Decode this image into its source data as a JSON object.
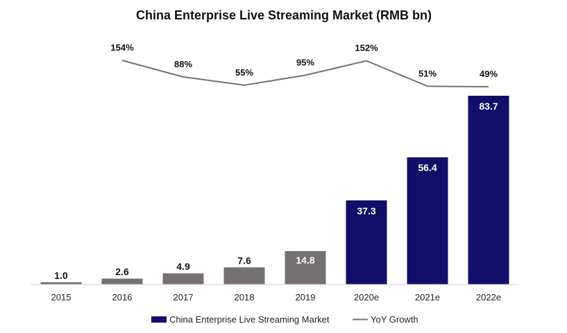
{
  "chart_data": {
    "type": "bar",
    "title": "China Enterprise Live Streaming Market (RMB bn)",
    "categories": [
      "2015",
      "2016",
      "2017",
      "2018",
      "2019",
      "2020e",
      "2021e",
      "2022e"
    ],
    "series": [
      {
        "name": "China Enterprise Live Streaming Market",
        "type": "bar",
        "values": [
          1.0,
          2.6,
          4.9,
          7.6,
          14.8,
          37.3,
          56.4,
          83.7
        ],
        "value_labels": [
          "1.0",
          "2.6",
          "4.9",
          "7.6",
          "14.8",
          "37.3",
          "56.4",
          "83.7"
        ],
        "colors": [
          "#767171",
          "#767171",
          "#767171",
          "#767171",
          "#767171",
          "#120F6B",
          "#120F6B",
          "#120F6B"
        ]
      },
      {
        "name": "YoY Growth",
        "type": "line",
        "x": [
          "2016",
          "2017",
          "2018",
          "2019",
          "2020e",
          "2021e",
          "2022e"
        ],
        "values": [
          154,
          88,
          55,
          95,
          152,
          51,
          49
        ],
        "value_labels": [
          "154%",
          "88%",
          "55%",
          "95%",
          "152%",
          "51%",
          "49%"
        ],
        "color": "#767171"
      }
    ],
    "ylim": [
      0,
      83.7
    ],
    "grid": false,
    "legend_position": "bottom"
  }
}
